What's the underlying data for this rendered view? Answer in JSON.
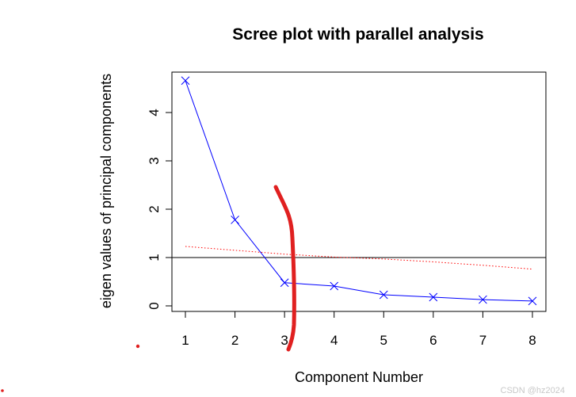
{
  "chart_data": {
    "type": "line",
    "title": "Scree plot with parallel analysis",
    "xlabel": "Component Number",
    "ylabel": "eigen values of principal components",
    "xlim": [
      1,
      8
    ],
    "ylim": [
      0,
      4.65
    ],
    "x_ticks": [
      1,
      2,
      3,
      4,
      5,
      6,
      7,
      8
    ],
    "y_ticks": [
      0,
      1,
      2,
      3,
      4
    ],
    "grid": false,
    "series": [
      {
        "role": "eigenvalues",
        "style": "line with x markers",
        "color": "#0000ff",
        "x": [
          1,
          2,
          3,
          4,
          5,
          6,
          7,
          8
        ],
        "y": [
          4.66,
          1.78,
          0.48,
          0.41,
          0.23,
          0.18,
          0.13,
          0.1
        ]
      },
      {
        "role": "parallel analysis",
        "style": "dotted",
        "color": "#ff0000",
        "x": [
          1,
          2,
          3,
          4,
          5,
          6,
          7,
          8
        ],
        "y": [
          1.23,
          1.15,
          1.07,
          1.01,
          0.97,
          0.91,
          0.84,
          0.76
        ]
      }
    ],
    "reference_line": {
      "y": 1,
      "color": "#000000"
    },
    "annotation": {
      "description": "hand-drawn red vertical stroke near component 3",
      "color": "#e02020"
    }
  },
  "watermark": "CSDN @hz2024"
}
